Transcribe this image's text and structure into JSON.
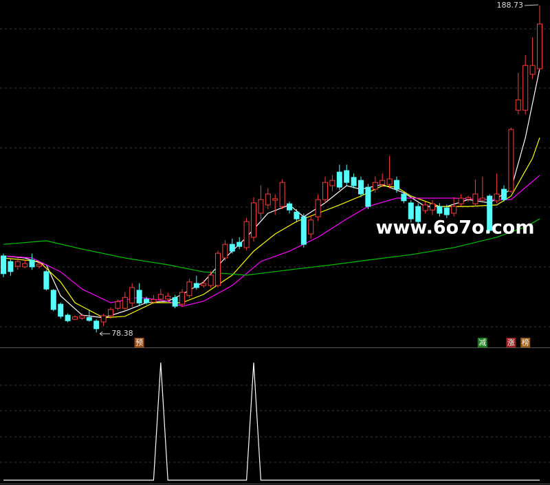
{
  "chart_data": [
    {
      "type": "candlestick",
      "ylim": [
        73.3,
        190.6
      ],
      "up_color": "#ff3c3c",
      "down_color": "#54ffff",
      "open": [
        104.2,
        102.3,
        100.7,
        100.5,
        102.8,
        100.7,
        98.9,
        92.6,
        87.9,
        84.2,
        82.8,
        83.2,
        83.4,
        82.2,
        81.9,
        84.0,
        86.5,
        86.5,
        88.3,
        92.6,
        89.6,
        88.6,
        89.6,
        89.6,
        90.1,
        87.9,
        90.8,
        94.9,
        94.2,
        94.2,
        94.2,
        103.5,
        108.1,
        108.8,
        107,
        110.5,
        118.6,
        121.4,
        123,
        120.9,
        121.8,
        119,
        117.4,
        111.6,
        117.4,
        123.2,
        127.9,
        132.5,
        133,
        130.7,
        129.7,
        127.4,
        126.7,
        128.3,
        128.3,
        129.7,
        125.1,
        122.1,
        120.9,
        119.5,
        119.7,
        120.9,
        120.4,
        118.6,
        121.8,
        123.3,
        121.8,
        123,
        124.4,
        122.8,
        126.7,
        126,
        153.4,
        153.4,
        165.5,
        167.4
      ],
      "high": [
        105,
        103,
        103.5,
        103,
        105,
        102,
        99.5,
        93,
        88.5,
        84.8,
        84.2,
        84.8,
        86,
        82.8,
        84.6,
        86.8,
        89.5,
        92,
        95,
        95,
        90.4,
        91,
        93,
        91.8,
        91,
        93,
        96.5,
        97.5,
        96,
        99,
        106,
        109.5,
        110,
        110.5,
        117,
        124,
        128,
        127,
        125,
        130,
        122.5,
        120,
        118.5,
        118,
        125,
        131,
        131.5,
        135,
        135,
        132,
        131,
        128.5,
        131,
        132,
        138,
        131,
        126,
        123,
        122,
        122.5,
        123,
        122,
        121.5,
        124,
        125,
        124.5,
        130,
        131,
        125,
        132,
        128,
        147.5,
        166,
        172,
        178,
        188.73
      ],
      "low": [
        97,
        97.5,
        99.5,
        100,
        99.5,
        100,
        92.5,
        85.5,
        83,
        81.8,
        82.5,
        82.6,
        82,
        78.38,
        80.5,
        83,
        85.8,
        86,
        87,
        87.5,
        87.8,
        88,
        88.5,
        88.8,
        86.5,
        87,
        90,
        92.8,
        93.5,
        93.5,
        93.5,
        102.5,
        105,
        106.5,
        106,
        109,
        116.5,
        120,
        118,
        120,
        118.5,
        115.5,
        107,
        110,
        116,
        122,
        126,
        126.5,
        128,
        127,
        124,
        120,
        125.5,
        127.5,
        127,
        125.5,
        122,
        115.5,
        114.5,
        118.5,
        118,
        117.5,
        117,
        117.5,
        121,
        122.5,
        121,
        122.5,
        112,
        122,
        122.5,
        125.5,
        152,
        152,
        164,
        167
      ],
      "close": [
        98.2,
        98.9,
        102.3,
        101.6,
        100.5,
        101.4,
        93.0,
        86.1,
        83.8,
        82.3,
        83.6,
        84.0,
        82.4,
        79.6,
        84.0,
        86.1,
        88.8,
        90.2,
        93.5,
        88.3,
        88.4,
        89.5,
        91.2,
        90.6,
        87.2,
        91.9,
        95.4,
        93.5,
        94.9,
        97.7,
        105.1,
        108.1,
        105.8,
        107.4,
        115.8,
        122.1,
        123.2,
        125.1,
        123.5,
        129.0,
        119.7,
        116.7,
        108.1,
        116.3,
        123.2,
        129.0,
        129.7,
        127.4,
        129,
        127.9,
        125.1,
        120.9,
        129,
        129.7,
        130.2,
        126.7,
        122.8,
        116.7,
        115.8,
        121.4,
        121.8,
        118.6,
        118.1,
        120.9,
        123.7,
        123.9,
        125.1,
        123.7,
        112.8,
        125.1,
        123.2,
        146.9,
        156.9,
        168.5,
        168.5,
        182.5
      ],
      "lines": [
        {
          "color": "#ffffff",
          "x": [
            0,
            3,
            6,
            8,
            11,
            14,
            17,
            20,
            23,
            25,
            28,
            31,
            34,
            37,
            40,
            42,
            45,
            48,
            50,
            53,
            56,
            59,
            62,
            65,
            68,
            71,
            73,
            75
          ],
          "values": [
            104.2,
            103.5,
            101.2,
            90.7,
            84.2,
            83.3,
            85.6,
            88.4,
            88.9,
            91.2,
            95.4,
            103.5,
            110.5,
            118.6,
            121.4,
            117.4,
            122.1,
            127.9,
            126.7,
            128.3,
            125.5,
            120.9,
            120.9,
            123.2,
            122.1,
            126.7,
            144.1,
            167.4
          ]
        },
        {
          "color": "#ffff00",
          "x": [
            0,
            5,
            8,
            10,
            14,
            17,
            21,
            25,
            28,
            32,
            35,
            38,
            41,
            44,
            47,
            50,
            53,
            55,
            57,
            61,
            65,
            69,
            71,
            74,
            75
          ],
          "values": [
            103.5,
            102.3,
            95.4,
            88.4,
            83.3,
            83.8,
            88.4,
            88.4,
            91.2,
            97.7,
            105.8,
            111.6,
            115.8,
            118.6,
            121.4,
            124.4,
            127.9,
            127.4,
            124.4,
            120.9,
            120.9,
            121.4,
            124.4,
            137.2,
            144.1
          ]
        },
        {
          "color": "#ff00ff",
          "x": [
            0,
            4,
            8,
            11,
            15,
            19,
            23,
            25,
            28,
            32,
            36,
            40,
            44,
            48,
            51,
            55,
            59,
            63,
            67,
            71,
            75
          ],
          "values": [
            104.2,
            103.5,
            98.8,
            93.0,
            88.4,
            90.2,
            88.9,
            87.2,
            88.9,
            94.2,
            102.3,
            105.8,
            110.5,
            116.7,
            120.9,
            123.7,
            123.7,
            123.7,
            123.2,
            123.2,
            131.4
          ]
        },
        {
          "color": "#00c000",
          "x": [
            0,
            6,
            11,
            17,
            23,
            28,
            34,
            40,
            46,
            51,
            57,
            63,
            69,
            73,
            75
          ],
          "values": [
            108.1,
            109.3,
            106.5,
            103.5,
            101.2,
            98.8,
            97.7,
            99.5,
            101.2,
            102.8,
            104.6,
            107,
            110.5,
            114,
            116.7
          ]
        }
      ],
      "markers": [
        {
          "candle": 19,
          "label": "预",
          "color": "#9a4a12"
        },
        {
          "candle": 67,
          "label": "减",
          "color": "#1e7a1e"
        },
        {
          "candle": 71,
          "label": "涨",
          "color": "#a01e1e"
        },
        {
          "candle": 73,
          "label": "榜",
          "color": "#9a5a12"
        }
      ],
      "watermark": "www.6o7o.com"
    },
    {
      "type": "line",
      "color": "#ffffff",
      "ylim": [
        0,
        1.13
      ],
      "values": [
        0,
        0,
        0,
        0,
        0,
        0,
        0,
        0,
        0,
        0,
        0,
        0,
        0,
        0,
        0,
        0,
        0,
        0,
        0,
        0,
        0,
        0,
        1,
        0,
        0,
        0,
        0,
        0,
        0,
        0,
        0,
        0,
        0,
        0,
        0,
        1,
        0,
        0,
        0,
        0,
        0,
        0,
        0,
        0,
        0,
        0,
        0,
        0,
        0,
        0,
        0,
        0,
        0,
        0,
        0,
        0,
        0,
        0,
        0,
        0,
        0,
        0,
        0,
        0,
        0,
        0,
        0,
        0,
        0,
        0,
        0,
        0,
        0,
        0,
        0,
        0
      ]
    }
  ]
}
